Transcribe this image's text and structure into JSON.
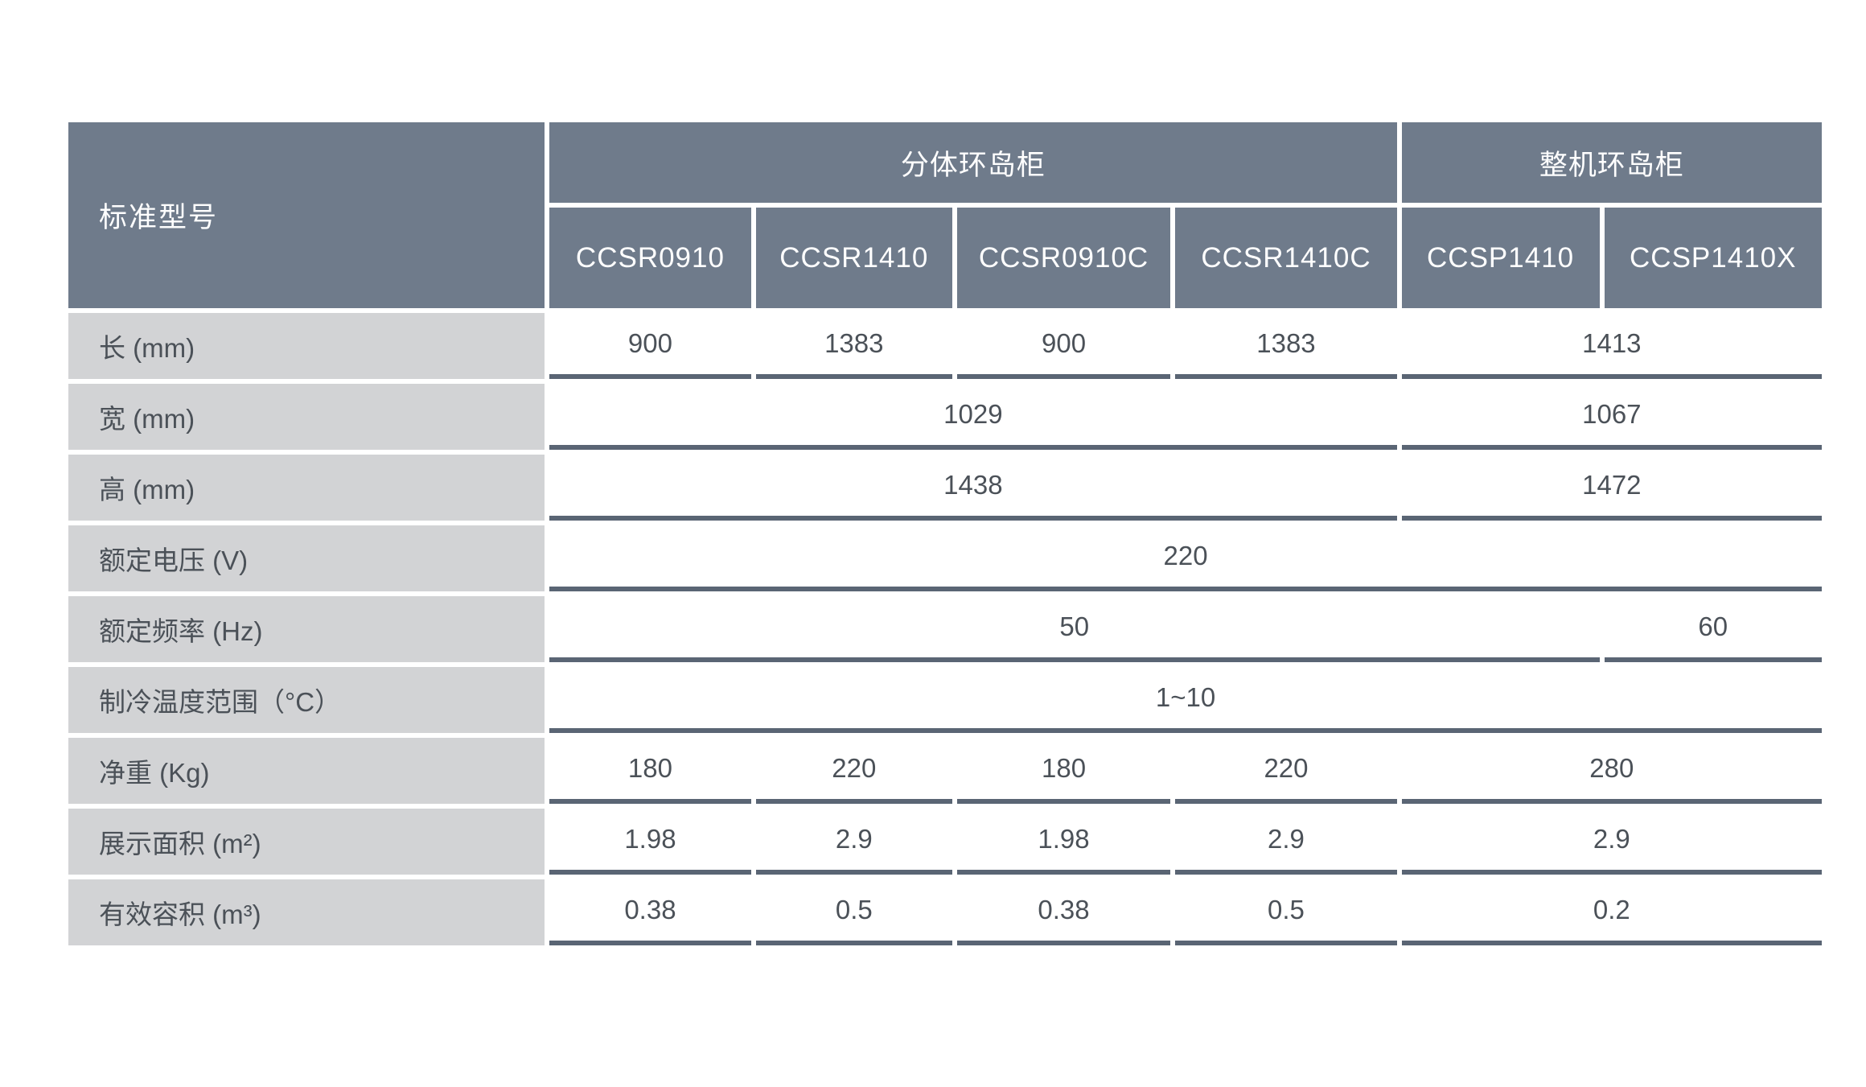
{
  "table": {
    "corner_header": "标准型号",
    "groups": [
      {
        "label": "分体环岛柜"
      },
      {
        "label": "整机环岛柜"
      }
    ],
    "models": [
      "CCSR0910",
      "CCSR1410",
      "CCSR0910C",
      "CCSR1410C",
      "CCSP1410",
      "CCSP1410X"
    ],
    "rows": [
      {
        "label": "长 (mm)",
        "cells": [
          "900",
          "1383",
          "900",
          "1383",
          "1413"
        ]
      },
      {
        "label": "宽 (mm)",
        "cells": [
          "1029",
          "1067"
        ]
      },
      {
        "label": "高 (mm)",
        "cells": [
          "1438",
          "1472"
        ]
      },
      {
        "label": "额定电压 (V)",
        "cells": [
          "220"
        ]
      },
      {
        "label": "额定频率 (Hz)",
        "cells": [
          "50",
          "60"
        ]
      },
      {
        "label": "制冷温度范围（°C）",
        "cells": [
          "1~10"
        ]
      },
      {
        "label": "净重 (Kg)",
        "cells": [
          "180",
          "220",
          "180",
          "220",
          "280"
        ]
      },
      {
        "label": "展示面积 (m²)",
        "cells": [
          "1.98",
          "2.9",
          "1.98",
          "2.9",
          "2.9"
        ]
      },
      {
        "label": "有效容积 (m³)",
        "cells": [
          "0.38",
          "0.5",
          "0.38",
          "0.5",
          "0.2"
        ]
      }
    ]
  },
  "colors": {
    "header_bg": "#6f7b8b",
    "label_bg": "#d2d3d5",
    "underline": "#5a6574",
    "text_dark": "#4b5158",
    "text_light": "#ffffff"
  },
  "chart_data": {
    "type": "table",
    "title": "标准型号",
    "column_groups": [
      {
        "label": "分体环岛柜",
        "span": 4
      },
      {
        "label": "整机环岛柜",
        "span": 2
      }
    ],
    "columns": [
      "CCSR0910",
      "CCSR1410",
      "CCSR0910C",
      "CCSR1410C",
      "CCSP1410",
      "CCSP1410X"
    ],
    "rows": [
      {
        "label": "长 (mm)",
        "values": [
          {
            "v": "900"
          },
          {
            "v": "1383"
          },
          {
            "v": "900"
          },
          {
            "v": "1383"
          },
          {
            "v": "1413",
            "span": 2
          }
        ]
      },
      {
        "label": "宽 (mm)",
        "values": [
          {
            "v": "1029",
            "span": 4
          },
          {
            "v": "1067",
            "span": 2
          }
        ]
      },
      {
        "label": "高 (mm)",
        "values": [
          {
            "v": "1438",
            "span": 4
          },
          {
            "v": "1472",
            "span": 2
          }
        ]
      },
      {
        "label": "额定电压 (V)",
        "values": [
          {
            "v": "220",
            "span": 6
          }
        ]
      },
      {
        "label": "额定频率 (Hz)",
        "values": [
          {
            "v": "50",
            "span": 5
          },
          {
            "v": "60",
            "span": 1
          }
        ]
      },
      {
        "label": "制冷温度范围（°C）",
        "values": [
          {
            "v": "1~10",
            "span": 6
          }
        ]
      },
      {
        "label": "净重 (Kg)",
        "values": [
          {
            "v": "180"
          },
          {
            "v": "220"
          },
          {
            "v": "180"
          },
          {
            "v": "220"
          },
          {
            "v": "280",
            "span": 2
          }
        ]
      },
      {
        "label": "展示面积 (m²)",
        "values": [
          {
            "v": "1.98"
          },
          {
            "v": "2.9"
          },
          {
            "v": "1.98"
          },
          {
            "v": "2.9"
          },
          {
            "v": "2.9",
            "span": 2
          }
        ]
      },
      {
        "label": "有效容积 (m³)",
        "values": [
          {
            "v": "0.38"
          },
          {
            "v": "0.5"
          },
          {
            "v": "0.38"
          },
          {
            "v": "0.5"
          },
          {
            "v": "0.2",
            "span": 2
          }
        ]
      }
    ]
  }
}
